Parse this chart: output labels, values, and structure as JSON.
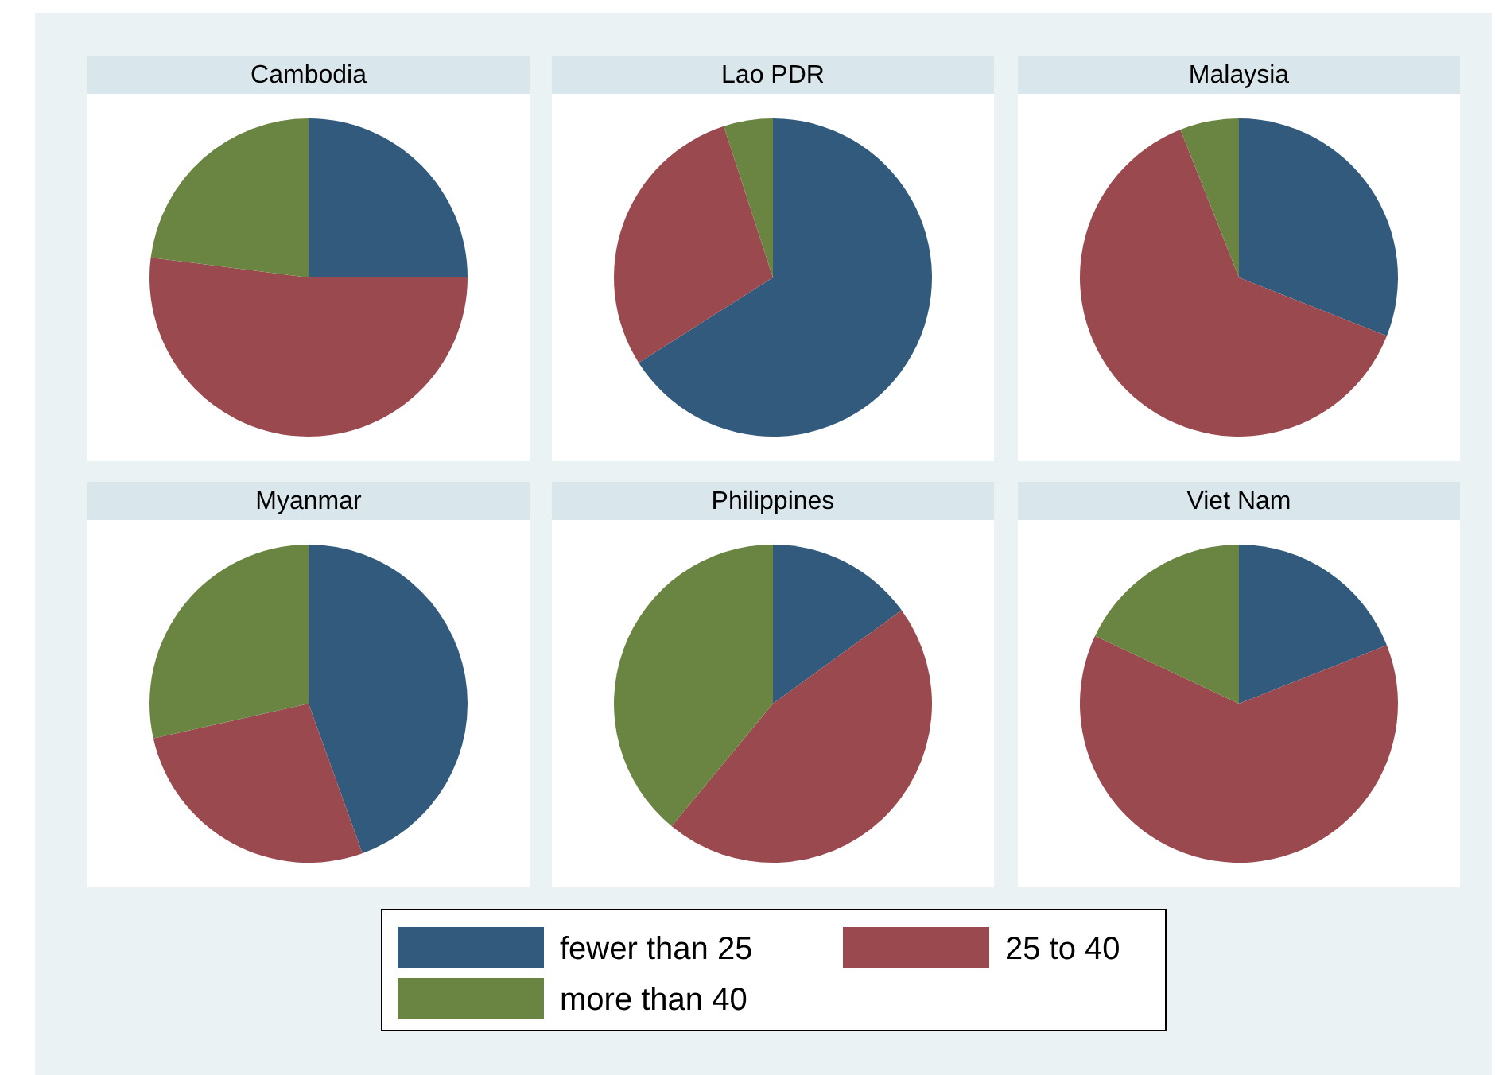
{
  "chart_data": [
    {
      "type": "pie",
      "title": "Cambodia",
      "categories": [
        "fewer than 25",
        "25 to 40",
        "more than 40"
      ],
      "values": [
        25,
        52,
        23
      ],
      "colors": [
        "#325a7c",
        "#9a4a4f",
        "#6a8542"
      ],
      "legend": "bottom"
    },
    {
      "type": "pie",
      "title": "Lao PDR",
      "categories": [
        null,
        null,
        null
      ],
      "values": [
        66,
        29,
        5
      ],
      "colors": [
        "#325a7c",
        "#9a4a4f",
        "#6a8542"
      ]
    },
    {
      "type": "pie",
      "title": "Malaysia",
      "categories": [
        null,
        null,
        null
      ],
      "values": [
        31,
        63,
        6
      ],
      "colors": [
        "#325a7c",
        "#9a4a4f",
        "#6a8542"
      ]
    },
    {
      "type": "pie",
      "title": "Myanmar",
      "categories": [
        null,
        null,
        null
      ],
      "values": [
        44.5,
        27,
        28.5
      ],
      "colors": [
        "#325a7c",
        "#9a4a4f",
        "#6a8542"
      ]
    },
    {
      "type": "pie",
      "title": "Philippines",
      "categories": [
        null,
        null,
        null
      ],
      "values": [
        15,
        46,
        39
      ],
      "colors": [
        "#325a7c",
        "#9a4a4f",
        "#6a8542"
      ]
    },
    {
      "type": "pie",
      "title": "Viet Nam",
      "categories": [
        null,
        null,
        null
      ],
      "values": [
        19,
        63,
        18
      ],
      "colors": [
        "#325a7c",
        "#9a4a4f",
        "#6a8542"
      ]
    }
  ]
}
